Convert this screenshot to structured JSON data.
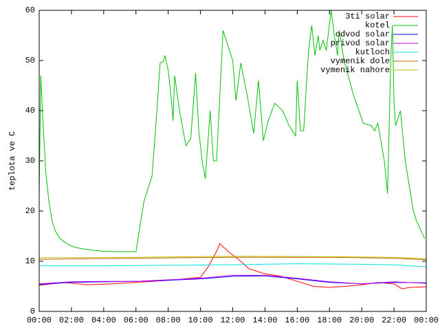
{
  "chart_data": {
    "type": "line",
    "y_label": "teplota ve C",
    "xlim": [
      0,
      24
    ],
    "ylim": [
      0,
      60
    ],
    "xticks": [
      {
        "value": 0,
        "label": "00:00"
      },
      {
        "value": 2,
        "label": "02:00"
      },
      {
        "value": 4,
        "label": "04:00"
      },
      {
        "value": 6,
        "label": "06:00"
      },
      {
        "value": 8,
        "label": "08:00"
      },
      {
        "value": 10,
        "label": "10:00"
      },
      {
        "value": 12,
        "label": "12:00"
      },
      {
        "value": 14,
        "label": "14:00"
      },
      {
        "value": 16,
        "label": "16:00"
      },
      {
        "value": 18,
        "label": "18:00"
      },
      {
        "value": 20,
        "label": "20:00"
      },
      {
        "value": 22,
        "label": "22:00"
      },
      {
        "value": 24,
        "label": "00:00"
      }
    ],
    "yticks": [
      0,
      10,
      20,
      30,
      40,
      50,
      60
    ],
    "legend": "top-right",
    "series": [
      {
        "name": "3ti solar",
        "color": "#ff0000",
        "x": [
          0,
          1.5,
          3,
          4.5,
          6,
          8,
          9,
          10,
          10.5,
          11,
          11.2,
          11.7,
          12.5,
          13,
          14,
          15,
          16,
          17,
          18,
          19,
          20,
          21,
          22,
          22.5,
          23,
          24
        ],
        "values": [
          5.2,
          5.8,
          5.3,
          5.5,
          5.8,
          6.2,
          6.5,
          6.8,
          9,
          12,
          13.5,
          12,
          10,
          8.5,
          7.5,
          7,
          6,
          5,
          4.8,
          5,
          5.3,
          5.8,
          5.5,
          4.5,
          4.8,
          4.9
        ]
      },
      {
        "name": "kotel",
        "color": "#00c000",
        "x": [
          0,
          0.1,
          0.2,
          0.4,
          0.6,
          0.8,
          1.0,
          1.3,
          1.7,
          2.2,
          3,
          4,
          5,
          6,
          6.2,
          6.5,
          7.0,
          7.3,
          7.5,
          7.7,
          7.8,
          8.0,
          8.2,
          8.3,
          8.4,
          8.7,
          9.1,
          9.4,
          9.7,
          9.9,
          10.1,
          10.3,
          10.6,
          10.8,
          11.0,
          11.4,
          11.7,
          12.0,
          12.2,
          12.5,
          12.9,
          13.3,
          13.6,
          13.9,
          14.2,
          14.6,
          15.1,
          15.5,
          15.9,
          16.0,
          16.2,
          16.4,
          16.7,
          16.9,
          17.1,
          17.3,
          17.4,
          17.6,
          17.8,
          18.1,
          18.3,
          18.5,
          18.6,
          18.9,
          19.5,
          20.1,
          20.6,
          20.8,
          21.0,
          21.4,
          21.6,
          21.8,
          21.9,
          22.0,
          22.1,
          22.4,
          22.7,
          23.2,
          23.4,
          23.9
        ],
        "values": [
          23.5,
          47,
          40,
          28,
          22,
          18,
          16,
          14.5,
          13.5,
          12.8,
          12.3,
          12,
          11.9,
          11.9,
          16,
          22,
          27,
          40,
          49.5,
          49.8,
          51,
          48,
          42,
          38,
          47,
          40,
          33,
          34.5,
          47.5,
          36,
          30,
          26.5,
          40,
          30,
          30,
          56,
          53,
          50,
          42,
          49.5,
          43,
          35.5,
          46,
          34,
          38,
          41.5,
          40,
          37,
          35,
          46,
          36,
          36,
          52,
          57,
          51,
          55,
          52,
          54,
          52,
          60,
          55,
          51,
          56,
          50,
          43,
          37.5,
          37,
          36,
          37.5,
          30,
          23.5,
          50,
          57,
          42,
          37,
          40,
          30,
          20,
          18,
          14.5
        ]
      },
      {
        "name": "odvod solar",
        "color": "#0000ff",
        "x": [
          0,
          2,
          4,
          6,
          8,
          10,
          12,
          14,
          16,
          18,
          20,
          22,
          24
        ],
        "values": [
          5.4,
          5.8,
          5.9,
          6,
          6.2,
          6.5,
          7,
          7.1,
          6.5,
          5.8,
          5.5,
          5.8,
          5.7
        ]
      },
      {
        "name": "privod solar",
        "color": "#c000ff",
        "x": [
          0,
          2,
          4,
          6,
          8,
          10,
          12,
          14,
          16,
          18,
          20,
          22,
          24
        ],
        "values": [
          5.5,
          5.9,
          6,
          6,
          6.3,
          6.6,
          7.2,
          7.2,
          6.6,
          5.9,
          5.5,
          5.9,
          5.6
        ]
      },
      {
        "name": "kutloch",
        "color": "#00e0e0",
        "x": [
          0,
          4,
          8,
          12,
          16,
          20,
          22,
          24
        ],
        "values": [
          9.1,
          9.1,
          9.2,
          9.3,
          9.5,
          9.4,
          9.3,
          8.9
        ]
      },
      {
        "name": "vymenik dole",
        "color": "#c06000",
        "x": [
          0,
          6,
          12,
          18,
          22,
          24
        ],
        "values": [
          10.4,
          10.6,
          10.8,
          10.8,
          10.6,
          10.3
        ]
      },
      {
        "name": "vymenik nahore",
        "color": "#c0c000",
        "x": [
          0,
          6,
          12,
          18,
          22,
          24
        ],
        "values": [
          10.7,
          10.8,
          11,
          10.9,
          10.8,
          10.5
        ]
      }
    ]
  }
}
